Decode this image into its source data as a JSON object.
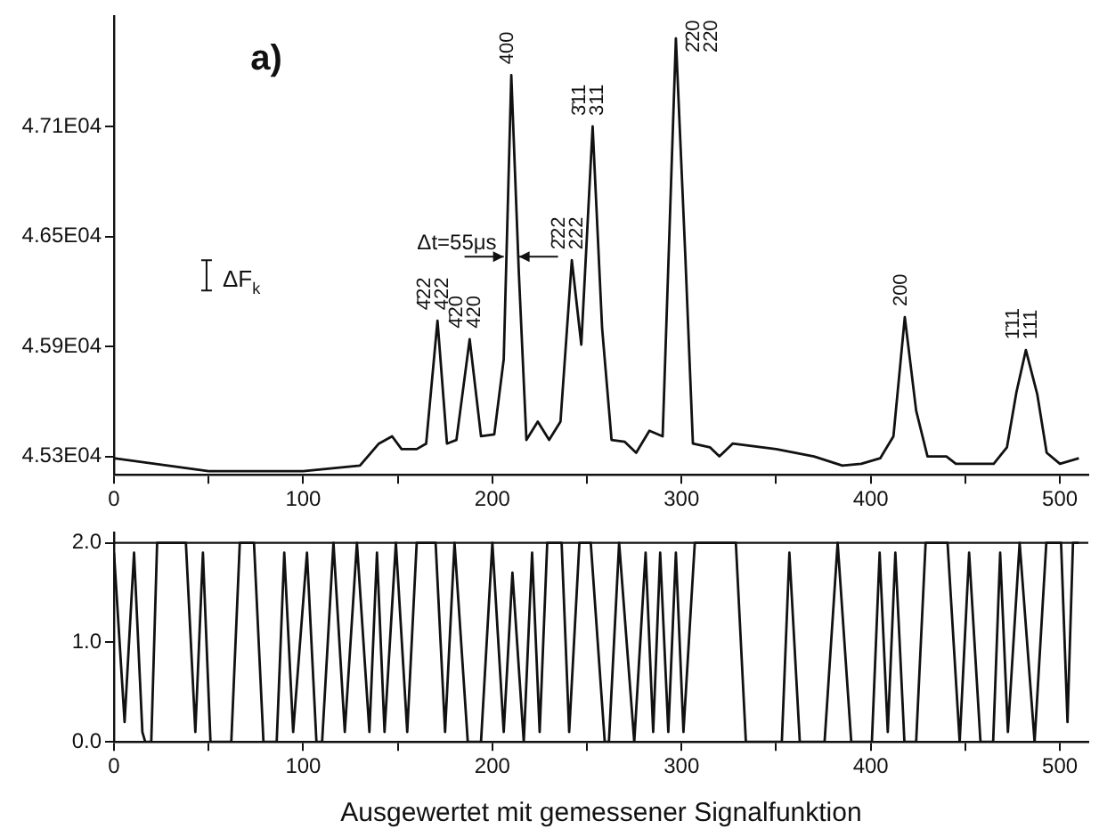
{
  "chart_data": [
    {
      "type": "line",
      "title": "a)",
      "x": [
        0,
        50,
        100,
        130,
        140,
        147,
        152,
        160,
        165,
        171,
        176,
        181,
        188,
        194,
        201,
        206,
        210,
        214,
        218,
        224,
        230,
        236,
        242,
        247,
        253,
        258,
        263,
        270,
        276,
        283,
        290,
        297,
        302,
        306,
        315,
        320,
        327,
        350,
        370,
        385,
        395,
        405,
        412,
        418,
        424,
        430,
        440,
        445,
        465,
        472,
        477,
        482,
        488,
        493,
        500,
        510
      ],
      "values": [
        45290,
        45220,
        45220,
        45250,
        45370,
        45410,
        45340,
        45340,
        45370,
        46040,
        45370,
        45390,
        45940,
        45410,
        45420,
        45830,
        47380,
        46300,
        45390,
        45490,
        45390,
        45490,
        46370,
        45910,
        47100,
        46000,
        45390,
        45380,
        45320,
        45440,
        45410,
        47580,
        46390,
        45370,
        45350,
        45300,
        45370,
        45340,
        45300,
        45250,
        45260,
        45290,
        45410,
        46060,
        45550,
        45300,
        45300,
        45260,
        45260,
        45350,
        45650,
        45880,
        45640,
        45320,
        45260,
        45290
      ],
      "color": "#111111",
      "line_style": "solid",
      "grid": false,
      "legend": false,
      "xlim": [
        0,
        515
      ],
      "xticks": [
        0,
        {
          "value": 50,
          "label": null
        },
        100,
        {
          "value": 150,
          "label": null
        },
        200,
        {
          "value": 250,
          "label": null
        },
        300,
        {
          "value": 350,
          "label": null
        },
        400,
        {
          "value": 450,
          "label": null
        },
        500
      ],
      "ylim": [
        45200,
        47700
      ],
      "yticks": [
        {
          "value": 45300,
          "label": "4.53E04"
        },
        {
          "value": 45900,
          "label": "4.59E04"
        },
        {
          "value": 46500,
          "label": "4.65E04"
        },
        {
          "value": 47100,
          "label": "4.71E04"
        }
      ],
      "annotations": [
        {
          "text": "4̄22 422",
          "x": 171,
          "y": 46040
        },
        {
          "text": "4̄20 420",
          "x": 188,
          "y": 45940
        },
        {
          "text": "400",
          "x": 210,
          "y": 47380
        },
        {
          "text": "2̄22 222",
          "x": 242,
          "y": 46370
        },
        {
          "text": "3̄11 311",
          "x": 253,
          "y": 47100
        },
        {
          "text": "2̄20 220",
          "x": 297,
          "y": 47580
        },
        {
          "text": "200",
          "x": 418,
          "y": 46060
        },
        {
          "text": "1̄11 111",
          "x": 482,
          "y": 45880
        },
        {
          "text": "Δt=55μs",
          "x": 210,
          "y": 46390
        },
        "ΔF$_{k}$"
      ]
    },
    {
      "type": "line",
      "xlabel": "Ausgewertet mit gemessener Signalfunktion",
      "x": [
        0,
        5.6,
        10.6,
        15,
        16.5,
        19.7,
        22.8,
        30,
        38,
        43,
        47,
        51,
        62,
        66.5,
        74,
        79,
        86,
        90,
        94.7,
        102,
        107,
        110,
        116,
        122,
        128.4,
        135,
        139,
        143,
        149,
        155,
        160,
        170,
        175,
        180,
        187,
        194,
        200,
        206,
        210.6,
        216.6,
        221,
        225,
        229,
        236.6,
        240.6,
        246,
        252,
        259.4,
        261.6,
        267,
        275,
        281,
        285,
        288.7,
        293,
        297,
        301,
        307,
        328.7,
        334,
        353,
        357,
        362.5,
        375.6,
        382.5,
        389.7,
        400.6,
        404.7,
        409,
        413,
        417.8,
        424,
        429,
        440.6,
        447,
        452,
        458,
        464.7,
        468.4,
        472.5,
        478.7,
        486.6,
        492.8,
        500.6,
        504,
        506.9,
        510
      ],
      "values": [
        1.9,
        0.2,
        1.9,
        0.1,
        0,
        0,
        2,
        2,
        2,
        0.1,
        1.9,
        0,
        0,
        2,
        2,
        0,
        0,
        1.9,
        0.1,
        1.9,
        0,
        0,
        2,
        0.1,
        2,
        0.1,
        1.9,
        0.1,
        2,
        0.1,
        2,
        2,
        0.1,
        2,
        0,
        0,
        2,
        0.1,
        1.7,
        0,
        1.9,
        0.1,
        2,
        2,
        0.1,
        2,
        2,
        0,
        0,
        2,
        0,
        1.9,
        0.1,
        1.9,
        0.1,
        1.9,
        0.1,
        2,
        2,
        0,
        0,
        1.9,
        0,
        0,
        2,
        0,
        0,
        1.9,
        0.1,
        1.9,
        0,
        0,
        2,
        2,
        0,
        1.9,
        0,
        0,
        1.9,
        0.1,
        2,
        0,
        2,
        2,
        0.2,
        2,
        2
      ],
      "color": "#111111",
      "line_style": "solid",
      "grid": false,
      "legend": false,
      "xlim": [
        0,
        515
      ],
      "xticks": [
        0,
        {
          "value": 50,
          "label": null
        },
        100,
        {
          "value": 150,
          "label": null
        },
        200,
        {
          "value": 250,
          "label": null
        },
        300,
        {
          "value": 350,
          "label": null
        },
        400,
        {
          "value": 450,
          "label": null
        },
        500
      ],
      "ylim": [
        0,
        2.1
      ],
      "yticks": [
        {
          "value": 0,
          "label": "0.0"
        },
        {
          "value": 1,
          "label": "1.0"
        },
        {
          "value": 2,
          "label": "2.0"
        }
      ],
      "ref_lines": [
        {
          "axis": "y",
          "value": 2
        }
      ]
    }
  ]
}
